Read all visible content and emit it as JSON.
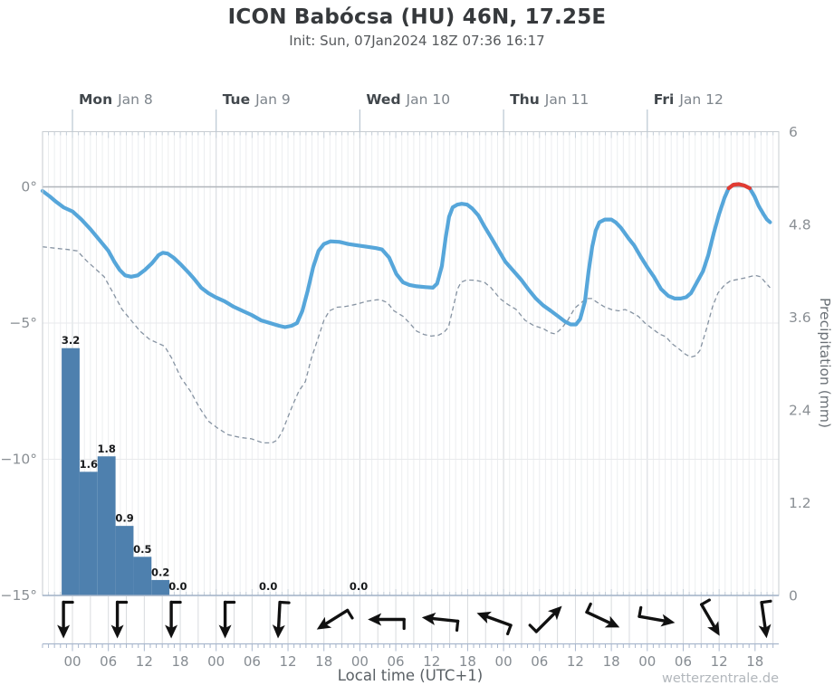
{
  "header": {
    "title": "ICON Babócsa (HU) 46N, 17.25E",
    "subtitle": "Init: Sun, 07Jan2024 18Z 07:36 16:17"
  },
  "watermark": "wetterzentrale.de",
  "chart_data": {
    "type": "line",
    "title": "ICON meteogram Babócsa (HU) 46N, 17.25E",
    "x_axis": {
      "label": "Local time (UTC+1)",
      "day_labels": [
        {
          "day": "Mon",
          "date": "Jan 8",
          "hour": 0
        },
        {
          "day": "Tue",
          "date": "Jan 9",
          "hour": 24
        },
        {
          "day": "Wed",
          "date": "Jan 10",
          "hour": 48
        },
        {
          "day": "Thu",
          "date": "Jan 11",
          "hour": 72
        },
        {
          "day": "Fri",
          "date": "Jan 12",
          "hour": 96
        }
      ],
      "hour_tick_step": 6,
      "hour_tick_labels": [
        "00",
        "06",
        "12",
        "18",
        "00",
        "06",
        "12",
        "18",
        "00",
        "06",
        "12",
        "18",
        "00",
        "06",
        "12",
        "18",
        "00",
        "06",
        "12",
        "18"
      ],
      "hour_tick_hours": [
        0,
        6,
        12,
        18,
        24,
        30,
        36,
        42,
        48,
        54,
        60,
        66,
        72,
        78,
        84,
        90,
        96,
        102,
        108,
        114
      ],
      "range_hours": [
        -5,
        118
      ]
    },
    "y_left": {
      "name": "temperature",
      "unit": "°C",
      "tick_labels": [
        "0°",
        "−5°",
        "−10°",
        "−15°"
      ],
      "tick_values": [
        0,
        -5,
        -10,
        -15
      ],
      "range": [
        2.05,
        -15
      ]
    },
    "y_right": {
      "label": "Precipitation (mm)",
      "tick_labels": [
        "6",
        "4.8",
        "3.6",
        "2.4",
        "1.2",
        "0"
      ],
      "tick_values": [
        6,
        4.8,
        3.6,
        2.4,
        1.2,
        0
      ],
      "range": [
        0,
        6
      ]
    },
    "grid": {
      "hourly_lines": true,
      "day_lines": true
    },
    "series": [
      {
        "name": "temperature-2m",
        "color": "#56a6da",
        "style": "solid",
        "width": 4.2,
        "points": [
          [
            -5,
            -0.15
          ],
          [
            -3.8,
            -0.35
          ],
          [
            -2.7,
            -0.55
          ],
          [
            -1.5,
            -0.75
          ],
          [
            0,
            -0.9
          ],
          [
            1.5,
            -1.2
          ],
          [
            3,
            -1.55
          ],
          [
            4.5,
            -1.95
          ],
          [
            6,
            -2.35
          ],
          [
            7,
            -2.75
          ],
          [
            7.9,
            -3.05
          ],
          [
            8.8,
            -3.25
          ],
          [
            9.8,
            -3.3
          ],
          [
            10.9,
            -3.25
          ],
          [
            12.1,
            -3.05
          ],
          [
            13.3,
            -2.8
          ],
          [
            14.4,
            -2.5
          ],
          [
            15.1,
            -2.42
          ],
          [
            15.9,
            -2.45
          ],
          [
            16.9,
            -2.6
          ],
          [
            18.1,
            -2.85
          ],
          [
            19.4,
            -3.15
          ],
          [
            20.4,
            -3.4
          ],
          [
            21.5,
            -3.7
          ],
          [
            22.7,
            -3.9
          ],
          [
            23.9,
            -4.05
          ],
          [
            25.4,
            -4.2
          ],
          [
            26.9,
            -4.4
          ],
          [
            28.4,
            -4.55
          ],
          [
            29.9,
            -4.7
          ],
          [
            31.5,
            -4.9
          ],
          [
            33,
            -5
          ],
          [
            34.5,
            -5.1
          ],
          [
            35.5,
            -5.15
          ],
          [
            36.6,
            -5.1
          ],
          [
            37.5,
            -5
          ],
          [
            38.4,
            -4.55
          ],
          [
            39.3,
            -3.8
          ],
          [
            40.2,
            -2.95
          ],
          [
            41.1,
            -2.35
          ],
          [
            42,
            -2.1
          ],
          [
            43.1,
            -2
          ],
          [
            44.6,
            -2.02
          ],
          [
            46.1,
            -2.1
          ],
          [
            47.6,
            -2.15
          ],
          [
            49.2,
            -2.2
          ],
          [
            50.7,
            -2.25
          ],
          [
            51.7,
            -2.3
          ],
          [
            52.9,
            -2.6
          ],
          [
            54.1,
            -3.2
          ],
          [
            55.2,
            -3.5
          ],
          [
            56.3,
            -3.6
          ],
          [
            57.5,
            -3.65
          ],
          [
            59,
            -3.68
          ],
          [
            60.2,
            -3.7
          ],
          [
            60.9,
            -3.55
          ],
          [
            61.7,
            -2.9
          ],
          [
            62.3,
            -1.9
          ],
          [
            62.9,
            -1.1
          ],
          [
            63.5,
            -0.75
          ],
          [
            64.3,
            -0.65
          ],
          [
            65,
            -0.62
          ],
          [
            65.9,
            -0.65
          ],
          [
            66.8,
            -0.8
          ],
          [
            67.8,
            -1.05
          ],
          [
            68.8,
            -1.45
          ],
          [
            69.9,
            -1.85
          ],
          [
            71.1,
            -2.3
          ],
          [
            72.3,
            -2.75
          ],
          [
            73.5,
            -3.05
          ],
          [
            74.9,
            -3.4
          ],
          [
            76.1,
            -3.75
          ],
          [
            77.4,
            -4.1
          ],
          [
            78.6,
            -4.35
          ],
          [
            79.9,
            -4.55
          ],
          [
            81.1,
            -4.75
          ],
          [
            82.3,
            -4.95
          ],
          [
            83.2,
            -5.05
          ],
          [
            84.1,
            -5.05
          ],
          [
            84.8,
            -4.85
          ],
          [
            85.6,
            -4.2
          ],
          [
            86.2,
            -3.1
          ],
          [
            86.8,
            -2.2
          ],
          [
            87.4,
            -1.6
          ],
          [
            88,
            -1.3
          ],
          [
            88.9,
            -1.2
          ],
          [
            90,
            -1.2
          ],
          [
            90.7,
            -1.3
          ],
          [
            91.6,
            -1.5
          ],
          [
            92.9,
            -1.9
          ],
          [
            93.8,
            -2.15
          ],
          [
            95,
            -2.6
          ],
          [
            96,
            -2.95
          ],
          [
            97.1,
            -3.3
          ],
          [
            98.3,
            -3.75
          ],
          [
            99.5,
            -4
          ],
          [
            100.6,
            -4.1
          ],
          [
            101.6,
            -4.1
          ],
          [
            102.5,
            -4.05
          ],
          [
            103.3,
            -3.9
          ],
          [
            104.3,
            -3.5
          ],
          [
            105.3,
            -3.1
          ],
          [
            106.2,
            -2.5
          ],
          [
            107.1,
            -1.7
          ],
          [
            108,
            -1
          ],
          [
            108.9,
            -0.4
          ],
          [
            109.6,
            -0.05
          ],
          [
            110.4,
            0.08
          ],
          [
            111.3,
            0.1
          ],
          [
            112.2,
            0.05
          ],
          [
            113.1,
            -0.05
          ],
          [
            113.9,
            -0.35
          ],
          [
            114.6,
            -0.7
          ],
          [
            115.4,
            -1
          ],
          [
            116,
            -1.2
          ],
          [
            116.5,
            -1.3
          ]
        ]
      },
      {
        "name": "temperature-above-zero",
        "color": "#e23b32",
        "style": "solid",
        "width": 4.2,
        "points": [
          [
            109.6,
            -0.05
          ],
          [
            110.4,
            0.08
          ],
          [
            111.3,
            0.1
          ],
          [
            112.2,
            0.05
          ],
          [
            113.1,
            -0.05
          ]
        ]
      },
      {
        "name": "dew-point",
        "color": "#8693a2",
        "style": "dashed",
        "width": 1.3,
        "points": [
          [
            -5,
            -2.2
          ],
          [
            -3,
            -2.25
          ],
          [
            -0.8,
            -2.3
          ],
          [
            0.8,
            -2.35
          ],
          [
            2.3,
            -2.7
          ],
          [
            3.8,
            -3
          ],
          [
            5.3,
            -3.3
          ],
          [
            6.8,
            -3.9
          ],
          [
            8.3,
            -4.5
          ],
          [
            9.8,
            -4.9
          ],
          [
            11.3,
            -5.3
          ],
          [
            12.9,
            -5.6
          ],
          [
            14.4,
            -5.75
          ],
          [
            15.4,
            -5.85
          ],
          [
            16.6,
            -6.3
          ],
          [
            18.1,
            -7
          ],
          [
            19.7,
            -7.5
          ],
          [
            21.2,
            -8.1
          ],
          [
            22.7,
            -8.6
          ],
          [
            24.2,
            -8.85
          ],
          [
            26,
            -9.1
          ],
          [
            28,
            -9.2
          ],
          [
            29.9,
            -9.25
          ],
          [
            31.8,
            -9.4
          ],
          [
            33.3,
            -9.4
          ],
          [
            34.2,
            -9.3
          ],
          [
            35.1,
            -8.95
          ],
          [
            36,
            -8.45
          ],
          [
            36.9,
            -7.95
          ],
          [
            37.8,
            -7.5
          ],
          [
            38.9,
            -7.15
          ],
          [
            39.9,
            -6.3
          ],
          [
            41.1,
            -5.5
          ],
          [
            42,
            -4.9
          ],
          [
            42.9,
            -4.55
          ],
          [
            44.2,
            -4.42
          ],
          [
            45.4,
            -4.4
          ],
          [
            46.6,
            -4.35
          ],
          [
            47.6,
            -4.3
          ],
          [
            49.2,
            -4.2
          ],
          [
            50.7,
            -4.15
          ],
          [
            51.4,
            -4.14
          ],
          [
            52.6,
            -4.25
          ],
          [
            53.7,
            -4.55
          ],
          [
            55.2,
            -4.75
          ],
          [
            56.3,
            -5
          ],
          [
            57.5,
            -5.3
          ],
          [
            58.7,
            -5.42
          ],
          [
            59.9,
            -5.48
          ],
          [
            61.1,
            -5.45
          ],
          [
            62,
            -5.35
          ],
          [
            62.8,
            -5.15
          ],
          [
            63.5,
            -4.5
          ],
          [
            64.3,
            -3.75
          ],
          [
            64.9,
            -3.5
          ],
          [
            65.8,
            -3.42
          ],
          [
            67.3,
            -3.43
          ],
          [
            68.8,
            -3.5
          ],
          [
            69.9,
            -3.7
          ],
          [
            71.4,
            -4.1
          ],
          [
            72.6,
            -4.3
          ],
          [
            74.1,
            -4.5
          ],
          [
            75.6,
            -4.9
          ],
          [
            77.1,
            -5.1
          ],
          [
            78.6,
            -5.2
          ],
          [
            79.7,
            -5.35
          ],
          [
            80.6,
            -5.4
          ],
          [
            81.7,
            -5.2
          ],
          [
            82.7,
            -4.9
          ],
          [
            83.9,
            -4.45
          ],
          [
            85.8,
            -4.1
          ],
          [
            86.7,
            -4.1
          ],
          [
            87.7,
            -4.25
          ],
          [
            88.8,
            -4.4
          ],
          [
            90,
            -4.5
          ],
          [
            91.2,
            -4.55
          ],
          [
            92.3,
            -4.5
          ],
          [
            93.3,
            -4.6
          ],
          [
            94.5,
            -4.75
          ],
          [
            95.6,
            -5
          ],
          [
            96.8,
            -5.2
          ],
          [
            98,
            -5.4
          ],
          [
            99.1,
            -5.5
          ],
          [
            100.1,
            -5.75
          ],
          [
            101.3,
            -5.95
          ],
          [
            102.4,
            -6.15
          ],
          [
            103.3,
            -6.25
          ],
          [
            104.1,
            -6.2
          ],
          [
            104.8,
            -6
          ],
          [
            105.9,
            -5.2
          ],
          [
            106.9,
            -4.4
          ],
          [
            107.8,
            -3.9
          ],
          [
            108.9,
            -3.6
          ],
          [
            109.9,
            -3.45
          ],
          [
            111.1,
            -3.4
          ],
          [
            112.2,
            -3.35
          ],
          [
            113.1,
            -3.3
          ],
          [
            114,
            -3.25
          ],
          [
            114.9,
            -3.3
          ],
          [
            115.7,
            -3.5
          ],
          [
            116.5,
            -3.7
          ]
        ]
      }
    ],
    "precipitation": {
      "name": "precipitation-3h",
      "unit": "mm",
      "color": "#4e80ae",
      "start_hour": -1.8,
      "step_hours": 3,
      "values": [
        3.2,
        1.6,
        1.8,
        0.9,
        0.5,
        0.2
      ],
      "zero_labels": [
        {
          "hour": 17.6,
          "text": "0.0"
        },
        {
          "hour": 32.7,
          "text": "0.0"
        },
        {
          "hour": 47.8,
          "text": "0.0"
        }
      ]
    },
    "wind_arrows": {
      "color": "#111111",
      "hours": [
        -1.5,
        7.5,
        16.5,
        25.5,
        34.5,
        43.5,
        52.5,
        61.5,
        70.5,
        79.5,
        88.5,
        97.5,
        106.5,
        115.5
      ],
      "rotations": [
        90,
        90,
        90,
        90,
        93,
        148,
        180,
        186,
        200,
        315,
        25,
        10,
        60,
        82
      ]
    },
    "colors": {
      "temperature_line": "#56a6da",
      "above_zero_line": "#e23b32",
      "dew_point_line": "#8693a2",
      "precip_bar": "#4e80ae",
      "zero_degree_line": "#b0b5ba",
      "grid_hour": "#eceef0",
      "grid_day": "#d7dbdf",
      "axis_strip": "#a9b7cd",
      "tick_text": "#8a8f94"
    }
  }
}
